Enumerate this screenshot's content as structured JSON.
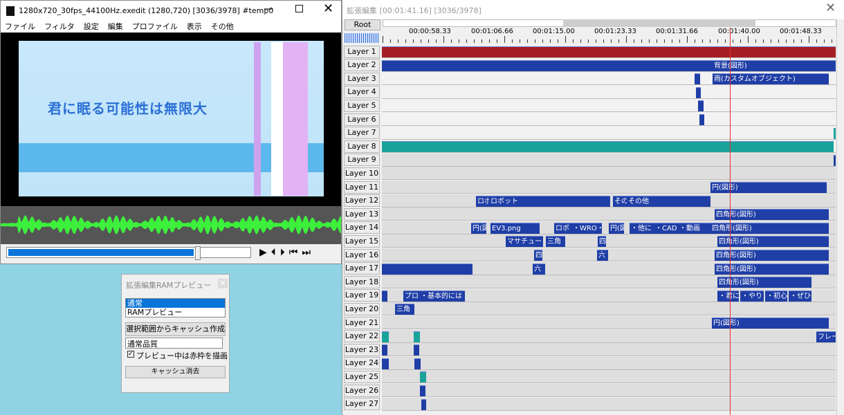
{
  "preview_window": {
    "title": "1280x720_30fps_44100Hz.exedit (1280,720)  [3036/3978]  #temp0",
    "menu": [
      "ファイル",
      "フィルタ",
      "設定",
      "編集",
      "プロファイル",
      "表示",
      "その他"
    ],
    "caption": "君に眠る可能性は無限大"
  },
  "ram_preview": {
    "title": "拡張編集RAMプレビュー",
    "list": [
      "通常",
      "RAMプレビュー"
    ],
    "create_button": "選択範囲からキャッシュ作成",
    "quality": "通常品質",
    "checkbox": "プレビュー中は赤枠を描画",
    "clear_button": "キャッシュ消去"
  },
  "timeline": {
    "title": "拡張編集 [00:01:41.16] [3036/3978]",
    "root": "Root",
    "times": [
      "00:00:58.33",
      "00:01:06.66",
      "00:01:15.00",
      "00:01:23.33",
      "00:01:31.66",
      "00:01:40.00",
      "00:01:48.33"
    ],
    "layers": [
      {
        "name": "Layer 1",
        "clips": []
      },
      {
        "name": "Layer 2",
        "clips": [
          "背景(図形)"
        ]
      },
      {
        "name": "Layer 3",
        "clips": [
          "雨(カスタムオブジェクト)"
        ]
      },
      {
        "name": "Layer 4",
        "clips": []
      },
      {
        "name": "Layer 5",
        "clips": []
      },
      {
        "name": "Layer 6",
        "clips": []
      },
      {
        "name": "Layer 7",
        "clips": []
      },
      {
        "name": "Layer 8",
        "clips": []
      },
      {
        "name": "Layer 9",
        "clips": []
      },
      {
        "name": "Layer 10",
        "clips": []
      },
      {
        "name": "Layer 11",
        "clips": [
          "円(図形)"
        ]
      },
      {
        "name": "Layer 12",
        "clips": [
          "ロボ",
          "ロボット",
          "その",
          "その他"
        ]
      },
      {
        "name": "Layer 13",
        "clips": [
          "四角形(図形)"
        ]
      },
      {
        "name": "Layer 14",
        "clips": [
          "円(図",
          "EV3.png",
          "ロボ",
          "・WRO・E",
          "円(図",
          "・他に",
          "・CAD",
          "・動画",
          "四角形(図形)"
        ]
      },
      {
        "name": "Layer 15",
        "clips": [
          "マサチュー",
          "三角",
          "四",
          "四角形(図形)"
        ]
      },
      {
        "name": "Layer 16",
        "clips": [
          "四",
          "六",
          "四角形(図形)"
        ]
      },
      {
        "name": "Layer 17",
        "clips": [
          "六",
          "四角形(図形)"
        ]
      },
      {
        "name": "Layer 18",
        "clips": [
          "四角形(図形)"
        ]
      },
      {
        "name": "Layer 19",
        "clips": [
          "プロ",
          "・基本的には",
          "・君に",
          "・やり",
          "・初心",
          "・ぜひ"
        ]
      },
      {
        "name": "Layer 20",
        "clips": [
          "三角"
        ]
      },
      {
        "name": "Layer 21",
        "clips": [
          "円(図形)"
        ]
      },
      {
        "name": "Layer 22",
        "clips": [
          "フレー"
        ]
      },
      {
        "name": "Layer 23",
        "clips": []
      },
      {
        "name": "Layer 24",
        "clips": []
      },
      {
        "name": "Layer 25",
        "clips": []
      },
      {
        "name": "Layer 26",
        "clips": []
      },
      {
        "name": "Layer 27",
        "clips": []
      }
    ]
  }
}
